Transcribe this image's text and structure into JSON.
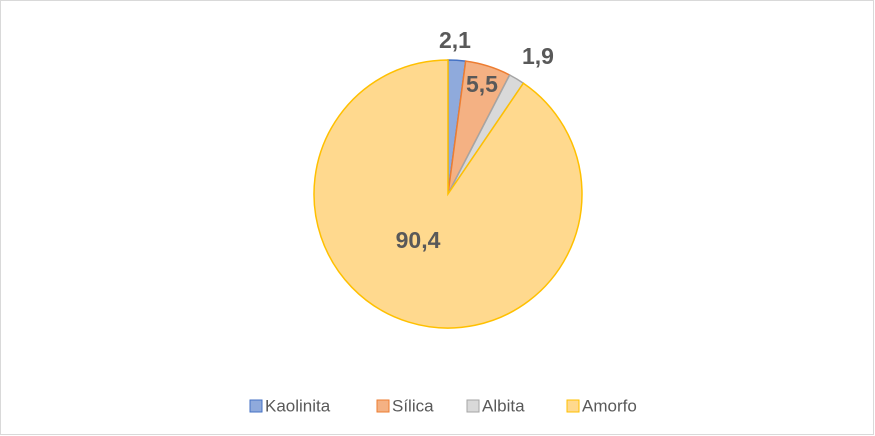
{
  "chart_data": {
    "type": "pie",
    "categories": [
      "Kaolinita",
      "Sílica",
      "Albita",
      "Amorfo"
    ],
    "values": [
      2.1,
      5.5,
      1.9,
      90.4
    ],
    "value_labels": [
      "2,1",
      "5,5",
      "1,9",
      "90,4"
    ],
    "colors": [
      "#8faadc",
      "#f4b183",
      "#d9d9d9",
      "#ffd98e"
    ],
    "edge_colors": [
      "#4472c4",
      "#ed7d31",
      "#a5a5a5",
      "#ffc000"
    ],
    "legend": "bottom"
  }
}
